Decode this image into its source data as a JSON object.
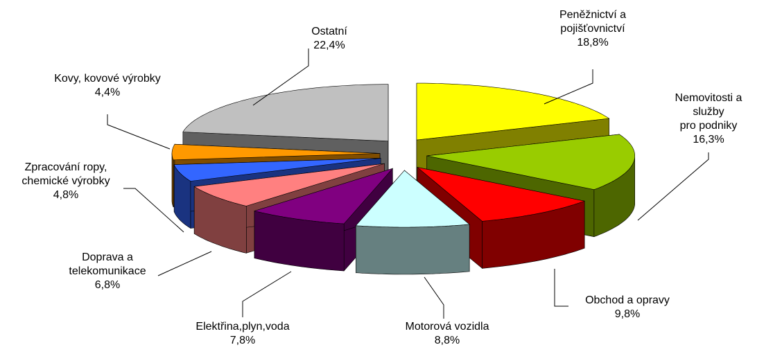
{
  "chart_data": {
    "type": "pie",
    "categories": [
      "Peněžnictví a\npojišťovnictví",
      "Nemovitosti a služby\npro podniky",
      "Obchod a opravy",
      "Motorová vozidla",
      "Elektřina,plyn,voda",
      "Doprava a\ntelekomunikace",
      "Zpracování ropy,\nchemické výrobky",
      "Kovy, kovové výrobky",
      "Ostatní"
    ],
    "values": [
      18.8,
      16.3,
      9.8,
      8.8,
      7.8,
      6.8,
      4.8,
      4.4,
      22.4
    ],
    "value_labels": [
      "18,8%",
      "16,3%",
      "9,8%",
      "8,8%",
      "7,8%",
      "6,8%",
      "4,8%",
      "4,4%",
      "22,4%"
    ],
    "colors": [
      "#FFFF00",
      "#99CC00",
      "#FF0000",
      "#CCFFFF",
      "#800080",
      "#FF8080",
      "#3366FF",
      "#FF9900",
      "#C0C0C0"
    ]
  }
}
